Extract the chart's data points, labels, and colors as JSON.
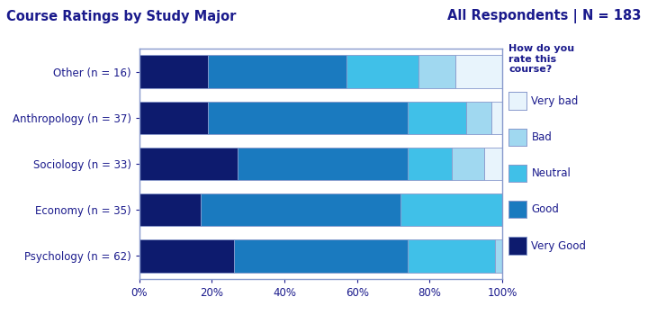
{
  "title_left": "Course Ratings by Study Major",
  "title_right": "All Respondents | N = 183",
  "legend_title": "How do you\nrate this\ncourse?",
  "categories": [
    "Other (n = 16)",
    "Anthropology (n = 37)",
    "Sociology (n = 33)",
    "Economy (n = 35)",
    "Psychology (n = 62)"
  ],
  "segments": {
    "Very Good": [
      19,
      19,
      27,
      17,
      26
    ],
    "Good": [
      38,
      55,
      47,
      55,
      48
    ],
    "Neutral": [
      20,
      16,
      12,
      28,
      24
    ],
    "Bad": [
      10,
      7,
      9,
      0,
      2
    ],
    "Very bad": [
      13,
      3,
      5,
      0,
      0
    ]
  },
  "colors": {
    "Very Good": "#0d1b6e",
    "Good": "#1a7abf",
    "Neutral": "#40c0e8",
    "Bad": "#a0d8f0",
    "Very bad": "#e8f4fc"
  },
  "title_color": "#1a1a8c",
  "label_color": "#1a1a8c",
  "tick_color": "#1a1a8c",
  "plot_bg": "#ffffff",
  "spine_color": "#8899cc",
  "figsize": [
    7.2,
    3.5
  ],
  "dpi": 100
}
